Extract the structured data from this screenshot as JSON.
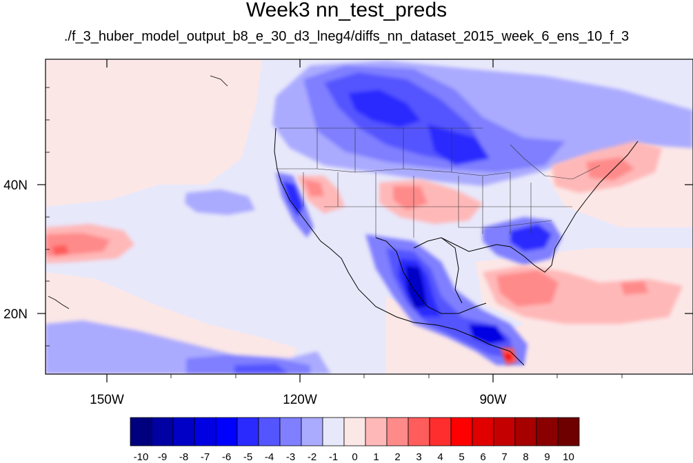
{
  "title": "Week3 nn_test_preds",
  "subtitle": "./f_3_huber_model_output_b8_e_30_d3_lneg4/diffs_nn_dataset_2015_week_6_ens_10_f_3",
  "map": {
    "projection": "cylindrical equidistant",
    "lon_range": [
      -159.5,
      -58
    ],
    "lat_range": [
      11,
      58
    ],
    "lon_tick_labels": [
      "150W",
      "120W",
      "90W"
    ],
    "lat_tick_labels": [
      "40N",
      "20N"
    ]
  },
  "colorbar": {
    "labels": [
      "-10",
      "-9",
      "-8",
      "-7",
      "-6",
      "-5",
      "-4",
      "-3",
      "-2",
      "-1",
      "0",
      "1",
      "2",
      "3",
      "4",
      "5",
      "6",
      "7",
      "8",
      "9",
      "10"
    ],
    "colors": [
      "#00007e",
      "#0000a3",
      "#0000c6",
      "#0000e3",
      "#0000ff",
      "#2a2aff",
      "#5555ff",
      "#7f7fff",
      "#aaaaff",
      "#e8e8fb",
      "#fce7e7",
      "#ffb8b8",
      "#ff8a8a",
      "#ff5c5c",
      "#ff2e2e",
      "#ff0000",
      "#e00000",
      "#c40000",
      "#a60000",
      "#8a0000",
      "#6e0000"
    ]
  },
  "chart_data": {
    "type": "heatmap",
    "title": "Week3 nn_test_preds",
    "subtitle": "./f_3_huber_model_output_b8_e_30_d3_lneg4/diffs_nn_dataset_2015_week_6_ens_10_f_3",
    "x_ticks": [
      "150W",
      "120W",
      "90W"
    ],
    "y_ticks": [
      "40N",
      "20N"
    ],
    "colorbar_levels": [
      -10,
      -9,
      -8,
      -7,
      -6,
      -5,
      -4,
      -3,
      -2,
      -1,
      0,
      1,
      2,
      3,
      4,
      5,
      6,
      7,
      8,
      9,
      10
    ],
    "features": [
      {
        "region": "southern Canada / northern plains",
        "lon": [
          -117,
          -84
        ],
        "lat": [
          43,
          56
        ],
        "value": -4
      },
      {
        "region": "central Canada core",
        "lon": [
          -108,
          -97
        ],
        "lat": [
          49,
          54
        ],
        "value": -5
      },
      {
        "region": "Mexico west coast",
        "lon": [
          -107,
          -93
        ],
        "lat": [
          16,
          31
        ],
        "value": -6
      },
      {
        "region": "southern Mexico / Central America",
        "lon": [
          -97,
          -86
        ],
        "lat": [
          13,
          19
        ],
        "value": -5
      },
      {
        "region": "California coast",
        "lon": [
          -124,
          -118
        ],
        "lat": [
          34,
          40
        ],
        "value": -4
      },
      {
        "region": "southeast US",
        "lon": [
          -88,
          -79
        ],
        "lat": [
          30,
          35
        ],
        "value": -3
      },
      {
        "region": "northeast Pacific",
        "lon": [
          -148,
          -134
        ],
        "lat": [
          36,
          39
        ],
        "value": -2
      },
      {
        "region": "eastern Pacific band",
        "lon": [
          -140,
          -107
        ],
        "lat": [
          11,
          17
        ],
        "value": -3
      },
      {
        "region": "southwest US",
        "lon": [
          -120,
          -111
        ],
        "lat": [
          36,
          40
        ],
        "value": 2
      },
      {
        "region": "central US",
        "lon": [
          -106,
          -95
        ],
        "lat": [
          35,
          40
        ],
        "value": 2
      },
      {
        "region": "northeast US",
        "lon": [
          -80,
          -68
        ],
        "lat": [
          39,
          46
        ],
        "value": 2
      },
      {
        "region": "subtropical central Pacific",
        "lon": [
          -159,
          -146
        ],
        "lat": [
          27,
          31
        ],
        "value": 3
      },
      {
        "region": "Caribbean / western Atlantic",
        "lon": [
          -83,
          -61
        ],
        "lat": [
          20,
          27
        ],
        "value": 3
      },
      {
        "region": "Central America Pacific coast",
        "lon": [
          -89,
          -87
        ],
        "lat": [
          12,
          14
        ],
        "value": 6
      }
    ]
  }
}
